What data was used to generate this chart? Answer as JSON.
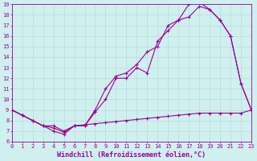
{
  "xlabel": "Windchill (Refroidissement éolien,°C)",
  "background_color": "#cff0ee",
  "grid_color": "#b8dbd9",
  "line_color": "#990099",
  "xmin": 0,
  "xmax": 23,
  "ymin": 6,
  "ymax": 19,
  "series1_x": [
    0,
    1,
    2,
    3,
    4,
    5,
    6,
    7,
    8,
    9,
    10,
    11,
    12,
    13,
    14,
    15,
    16,
    17,
    18,
    19,
    20,
    21,
    22,
    23
  ],
  "series1_y": [
    9,
    8.5,
    8,
    7.5,
    7,
    6.7,
    7.5,
    7.5,
    8.8,
    10,
    12,
    12,
    13,
    12.5,
    15.5,
    16.5,
    17.5,
    19.0,
    19.2,
    18.5,
    17.5,
    16,
    11.5,
    9
  ],
  "series2_x": [
    0,
    1,
    2,
    3,
    4,
    5,
    6,
    7,
    8,
    9,
    10,
    11,
    12,
    13,
    14,
    15,
    16,
    17,
    18,
    19,
    20,
    21,
    22,
    23
  ],
  "series2_y": [
    9,
    8.5,
    8,
    7.5,
    7.5,
    7,
    7.5,
    7.5,
    9.0,
    11,
    12.2,
    12.5,
    13.3,
    14.5,
    15.0,
    17.0,
    17.5,
    17.8,
    18.8,
    18.5,
    17.5,
    16,
    11.5,
    9
  ],
  "series3_x": [
    0,
    1,
    2,
    3,
    4,
    5,
    6,
    7,
    8,
    9,
    10,
    11,
    12,
    13,
    14,
    15,
    16,
    17,
    18,
    19,
    20,
    21,
    22,
    23
  ],
  "series3_y": [
    9,
    8.5,
    8,
    7.5,
    7.3,
    6.9,
    7.5,
    7.6,
    7.7,
    7.8,
    7.9,
    8.0,
    8.1,
    8.2,
    8.3,
    8.4,
    8.5,
    8.6,
    8.7,
    8.7,
    8.7,
    8.7,
    8.7,
    9
  ],
  "marker": "+",
  "markersize": 3,
  "linewidth": 0.8,
  "tick_fontsize": 5.0,
  "xlabel_fontsize": 6.0
}
